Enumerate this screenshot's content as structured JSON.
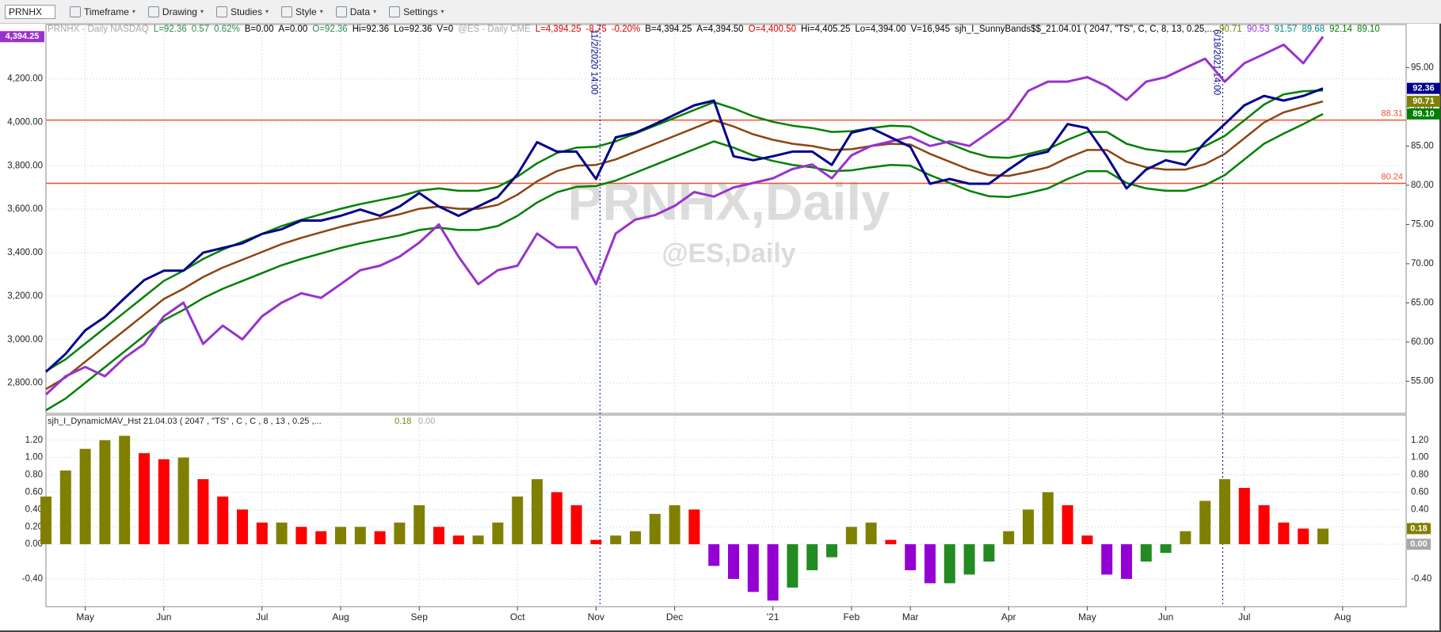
{
  "toolbar": {
    "symbol": "PRNHX",
    "menus": [
      "Timeframe",
      "Drawing",
      "Studies",
      "Style",
      "Data",
      "Settings"
    ]
  },
  "header": [
    {
      "text": "PRNHX - Daily  NASDAQ",
      "color": "#a8a8a8"
    },
    {
      "text": "L=92.36",
      "color": "#2e8b57"
    },
    {
      "text": "0.57",
      "color": "#2e8b57"
    },
    {
      "text": "0.62%",
      "color": "#2e8b57"
    },
    {
      "text": "B=0.00",
      "color": "#000000"
    },
    {
      "text": "A=0.00",
      "color": "#000000"
    },
    {
      "text": "O=92.36",
      "color": "#2e8b57"
    },
    {
      "text": "Hi=92.36",
      "color": "#000000"
    },
    {
      "text": "Lo=92.36",
      "color": "#000000"
    },
    {
      "text": "V=0",
      "color": "#000000"
    },
    {
      "text": "@ES - Daily  CME",
      "color": "#a8a8a8"
    },
    {
      "text": "L=4,394.25",
      "color": "#e00000"
    },
    {
      "text": "-8.75",
      "color": "#e00000"
    },
    {
      "text": "-0.20%",
      "color": "#e00000"
    },
    {
      "text": "B=4,394.25",
      "color": "#000000"
    },
    {
      "text": "A=4,394.50",
      "color": "#000000"
    },
    {
      "text": "O=4,400.50",
      "color": "#e00000"
    },
    {
      "text": "Hi=4,405.25",
      "color": "#000000"
    },
    {
      "text": "Lo=4,394.00",
      "color": "#000000"
    },
    {
      "text": "V=16,945",
      "color": "#000000"
    },
    {
      "text": "sjh_I_SunnyBands$$_21.04.01 (  2047, \"TS\",  C,  C,    8,  13,  0.25,...",
      "color": "#000000"
    },
    {
      "text": "90.71",
      "color": "#808000"
    },
    {
      "text": "90.53",
      "color": "#9932cc"
    },
    {
      "text": "91.57",
      "color": "#008b8b"
    },
    {
      "text": "89.68",
      "color": "#008b8b"
    },
    {
      "text": "92.14",
      "color": "#008000"
    },
    {
      "text": "89.10",
      "color": "#008000"
    }
  ],
  "chart_data": [
    {
      "type": "line",
      "watermarks": [
        "PRNHX,Daily",
        "@ES,Daily"
      ],
      "annotations": [
        "11/2/2020 14:00",
        "6/18/2021 14:00"
      ],
      "categories": [
        null,
        null,
        "May",
        null,
        null,
        null,
        "Jun",
        null,
        null,
        null,
        null,
        "Jul",
        null,
        null,
        null,
        "Aug",
        null,
        null,
        null,
        "Sep",
        null,
        null,
        null,
        null,
        "Oct",
        null,
        null,
        null,
        "Nov",
        null,
        null,
        null,
        "Dec",
        null,
        null,
        null,
        null,
        "'21",
        null,
        null,
        null,
        "Feb",
        null,
        null,
        "Mar",
        null,
        null,
        null,
        null,
        "Apr",
        null,
        null,
        null,
        "May",
        null,
        null,
        null,
        "Jun",
        null,
        null,
        null,
        "Jul",
        null,
        null,
        null,
        null,
        "Aug",
        null,
        null
      ],
      "ylim": [
        2660,
        4450
      ],
      "yticks": [
        {
          "value": 2800,
          "label": "2,800.00"
        },
        {
          "value": 3000,
          "label": "3,000.00"
        },
        {
          "value": 3200,
          "label": "3,200.00"
        },
        {
          "value": 3400,
          "label": "3,400.00"
        },
        {
          "value": 3600,
          "label": "3,600.00"
        },
        {
          "value": 3800,
          "label": "3,800.00"
        },
        {
          "value": 4000,
          "label": "4,000.00"
        },
        {
          "value": 4200,
          "label": "4,200.00"
        }
      ],
      "y2lim": [
        50.9,
        100.5
      ],
      "y2ticks": [
        {
          "value": 55,
          "label": "55.00"
        },
        {
          "value": 60,
          "label": "60.00"
        },
        {
          "value": 65,
          "label": "65.00"
        },
        {
          "value": 70,
          "label": "70.00"
        },
        {
          "value": 75,
          "label": "75.00"
        },
        {
          "value": 80,
          "label": "80.00"
        },
        {
          "value": 85,
          "label": "85.00"
        },
        {
          "value": 90,
          "label": "90.00"
        },
        {
          "value": 95,
          "label": "95.00"
        }
      ],
      "grid": true,
      "levels": [
        {
          "value": 88.31,
          "label": "88.31"
        },
        {
          "value": 80.24,
          "label": "80.24"
        }
      ],
      "level_color": "#f05030",
      "badges": [
        {
          "value": 4394.25,
          "label": "4,394.25",
          "color": "#9932cc",
          "axis": "y"
        },
        {
          "value": 92.36,
          "label": "92.36",
          "color": "#00008b",
          "axis": "y2"
        },
        {
          "value": 90.71,
          "label": "90.71",
          "color": "#808000",
          "axis": "y2"
        },
        {
          "value": 89.1,
          "label": "89.10",
          "color": "#008000",
          "axis": "y2"
        }
      ],
      "series": [
        {
          "color": "#008000",
          "axis": "y2",
          "values": [
            56.3,
            57.8,
            59.8,
            61.8,
            63.8,
            65.8,
            67.8,
            69.1,
            70.6,
            71.8,
            72.8,
            73.8,
            74.8,
            75.6,
            76.3,
            77.0,
            77.6,
            78.1,
            78.6,
            79.3,
            79.6,
            79.3,
            79.3,
            79.8,
            81.1,
            82.8,
            84.1,
            84.8,
            84.9,
            85.6,
            86.6,
            87.6,
            88.6,
            89.6,
            90.6,
            89.8,
            88.8,
            88.1,
            87.6,
            87.3,
            86.8,
            86.9,
            87.3,
            87.6,
            87.5,
            86.3,
            85.3,
            84.3,
            83.6,
            83.5,
            84.0,
            84.6,
            85.8,
            86.8,
            86.8,
            85.3,
            84.6,
            84.3,
            84.3,
            85.0,
            86.3,
            88.3,
            90.3,
            91.6,
            92.0,
            92.1,
            null,
            null,
            null
          ]
        },
        {
          "color": "#8b4513",
          "axis": "y2",
          "values": [
            54.0,
            55.5,
            57.5,
            59.5,
            61.5,
            63.5,
            65.5,
            66.8,
            68.3,
            69.5,
            70.5,
            71.5,
            72.5,
            73.3,
            74.0,
            74.7,
            75.3,
            75.8,
            76.3,
            77.0,
            77.3,
            77.0,
            77.0,
            77.5,
            78.8,
            80.5,
            81.8,
            82.5,
            82.6,
            83.3,
            84.3,
            85.3,
            86.3,
            87.3,
            88.3,
            87.5,
            86.5,
            85.8,
            85.3,
            85.0,
            84.5,
            84.6,
            85.0,
            85.3,
            85.2,
            84.0,
            83.0,
            82.0,
            81.3,
            81.2,
            81.7,
            82.3,
            83.5,
            84.5,
            84.5,
            83.0,
            82.3,
            82.0,
            82.0,
            82.7,
            84.0,
            86.0,
            88.0,
            89.3,
            90.0,
            90.7,
            null,
            null,
            null
          ]
        },
        {
          "color": "#008000",
          "axis": "y2",
          "values": [
            51.3,
            52.8,
            54.8,
            56.8,
            58.8,
            60.8,
            62.8,
            64.1,
            65.6,
            66.8,
            67.8,
            68.8,
            69.8,
            70.6,
            71.3,
            72.0,
            72.6,
            73.1,
            73.6,
            74.3,
            74.6,
            74.3,
            74.3,
            74.8,
            76.1,
            77.8,
            79.1,
            79.8,
            79.9,
            80.6,
            81.6,
            82.6,
            83.6,
            84.6,
            85.6,
            84.8,
            83.8,
            83.1,
            82.6,
            82.3,
            81.8,
            81.9,
            82.3,
            82.6,
            82.5,
            81.3,
            80.3,
            79.3,
            78.6,
            78.5,
            79.0,
            79.6,
            80.8,
            81.8,
            81.8,
            80.3,
            79.6,
            79.3,
            79.3,
            80.0,
            81.3,
            83.3,
            85.3,
            86.6,
            87.8,
            89.1,
            null,
            null,
            null
          ]
        },
        {
          "color": "#9932cc",
          "axis": "y",
          "values": [
            2747,
            2831,
            2874,
            2831,
            2916,
            2980,
            3107,
            3170,
            2980,
            3064,
            3001,
            3107,
            3170,
            3213,
            3192,
            3255,
            3319,
            3340,
            3382,
            3446,
            3530,
            3382,
            3255,
            3319,
            3340,
            3488,
            3425,
            3425,
            3255,
            3488,
            3552,
            3573,
            3615,
            3679,
            3658,
            3700,
            3721,
            3742,
            3785,
            3806,
            3742,
            3848,
            3891,
            3912,
            3933,
            3891,
            3912,
            3891,
            3954,
            4018,
            4145,
            4187,
            4187,
            4208,
            4166,
            4103,
            4187,
            4208,
            4251,
            4293,
            4187,
            4272,
            4314,
            4357,
            4272,
            4394.25,
            null,
            null,
            null
          ]
        },
        {
          "color": "#00008b",
          "axis": "y2",
          "values": [
            56.2,
            58.5,
            61.5,
            63.2,
            65.6,
            67.9,
            69.1,
            69.1,
            71.4,
            72.0,
            72.6,
            73.8,
            74.4,
            75.5,
            75.5,
            76.1,
            76.9,
            76.1,
            77.3,
            79.0,
            77.3,
            76.1,
            77.3,
            78.5,
            81.4,
            85.5,
            84.3,
            84.3,
            80.8,
            86.1,
            86.7,
            87.8,
            89.0,
            90.2,
            90.8,
            83.7,
            83.2,
            83.7,
            84.3,
            84.3,
            82.6,
            86.7,
            87.3,
            86.1,
            84.9,
            80.2,
            80.8,
            80.2,
            80.2,
            82.0,
            83.7,
            84.3,
            87.8,
            87.3,
            83.7,
            79.6,
            82.0,
            83.2,
            82.6,
            85.5,
            87.8,
            90.2,
            91.4,
            90.8,
            91.4,
            92.36,
            null,
            null,
            null
          ]
        }
      ]
    },
    {
      "type": "bar",
      "title": "sjh_I_DynamicMAV_Hst 21.04.03 ( 2047 , \"TS\" , C , C ,  8 , 13 , 0.25 ,...",
      "title_values": [
        {
          "text": "0.18",
          "color": "#808000"
        },
        {
          "text": "0.00",
          "color": "#a8a8a8"
        }
      ],
      "ylim": [
        -0.72,
        1.49
      ],
      "yticks": [
        {
          "value": -0.4,
          "label": "-0.40"
        },
        {
          "value": 0,
          "label": "0.00"
        },
        {
          "value": 0.2,
          "label": "0.20"
        },
        {
          "value": 0.4,
          "label": "0.40"
        },
        {
          "value": 0.6,
          "label": "0.60"
        },
        {
          "value": 0.8,
          "label": "0.80"
        },
        {
          "value": 1.0,
          "label": "1.00"
        },
        {
          "value": 1.2,
          "label": "1.20"
        }
      ],
      "grid": true,
      "colors": {
        "rising_positive": "#808000",
        "falling_positive": "#ff0000",
        "falling_negative": "#9400d3",
        "rising_negative": "#228b22"
      },
      "badges": [
        {
          "value": 0.18,
          "label": "0.18",
          "color": "#808000"
        },
        {
          "value": 0,
          "label": "0.00",
          "color": "#a8a8a8"
        }
      ],
      "values": [
        0.55,
        0.85,
        1.1,
        1.2,
        1.25,
        1.05,
        0.98,
        1.0,
        0.75,
        0.55,
        0.4,
        0.25,
        0.25,
        0.2,
        0.15,
        0.2,
        0.2,
        0.15,
        0.25,
        0.45,
        0.2,
        0.1,
        0.1,
        0.25,
        0.55,
        0.75,
        0.6,
        0.45,
        0.05,
        0.1,
        0.15,
        0.35,
        0.45,
        0.4,
        -0.25,
        -0.4,
        -0.55,
        -0.65,
        -0.5,
        -0.3,
        -0.15,
        0.2,
        0.25,
        0.05,
        -0.3,
        -0.45,
        -0.45,
        -0.35,
        -0.2,
        0.15,
        0.4,
        0.6,
        0.45,
        0.1,
        -0.35,
        -0.4,
        -0.2,
        -0.1,
        0.15,
        0.5,
        0.75,
        0.65,
        0.45,
        0.25,
        0.18,
        0.18,
        null,
        null,
        null
      ]
    }
  ]
}
